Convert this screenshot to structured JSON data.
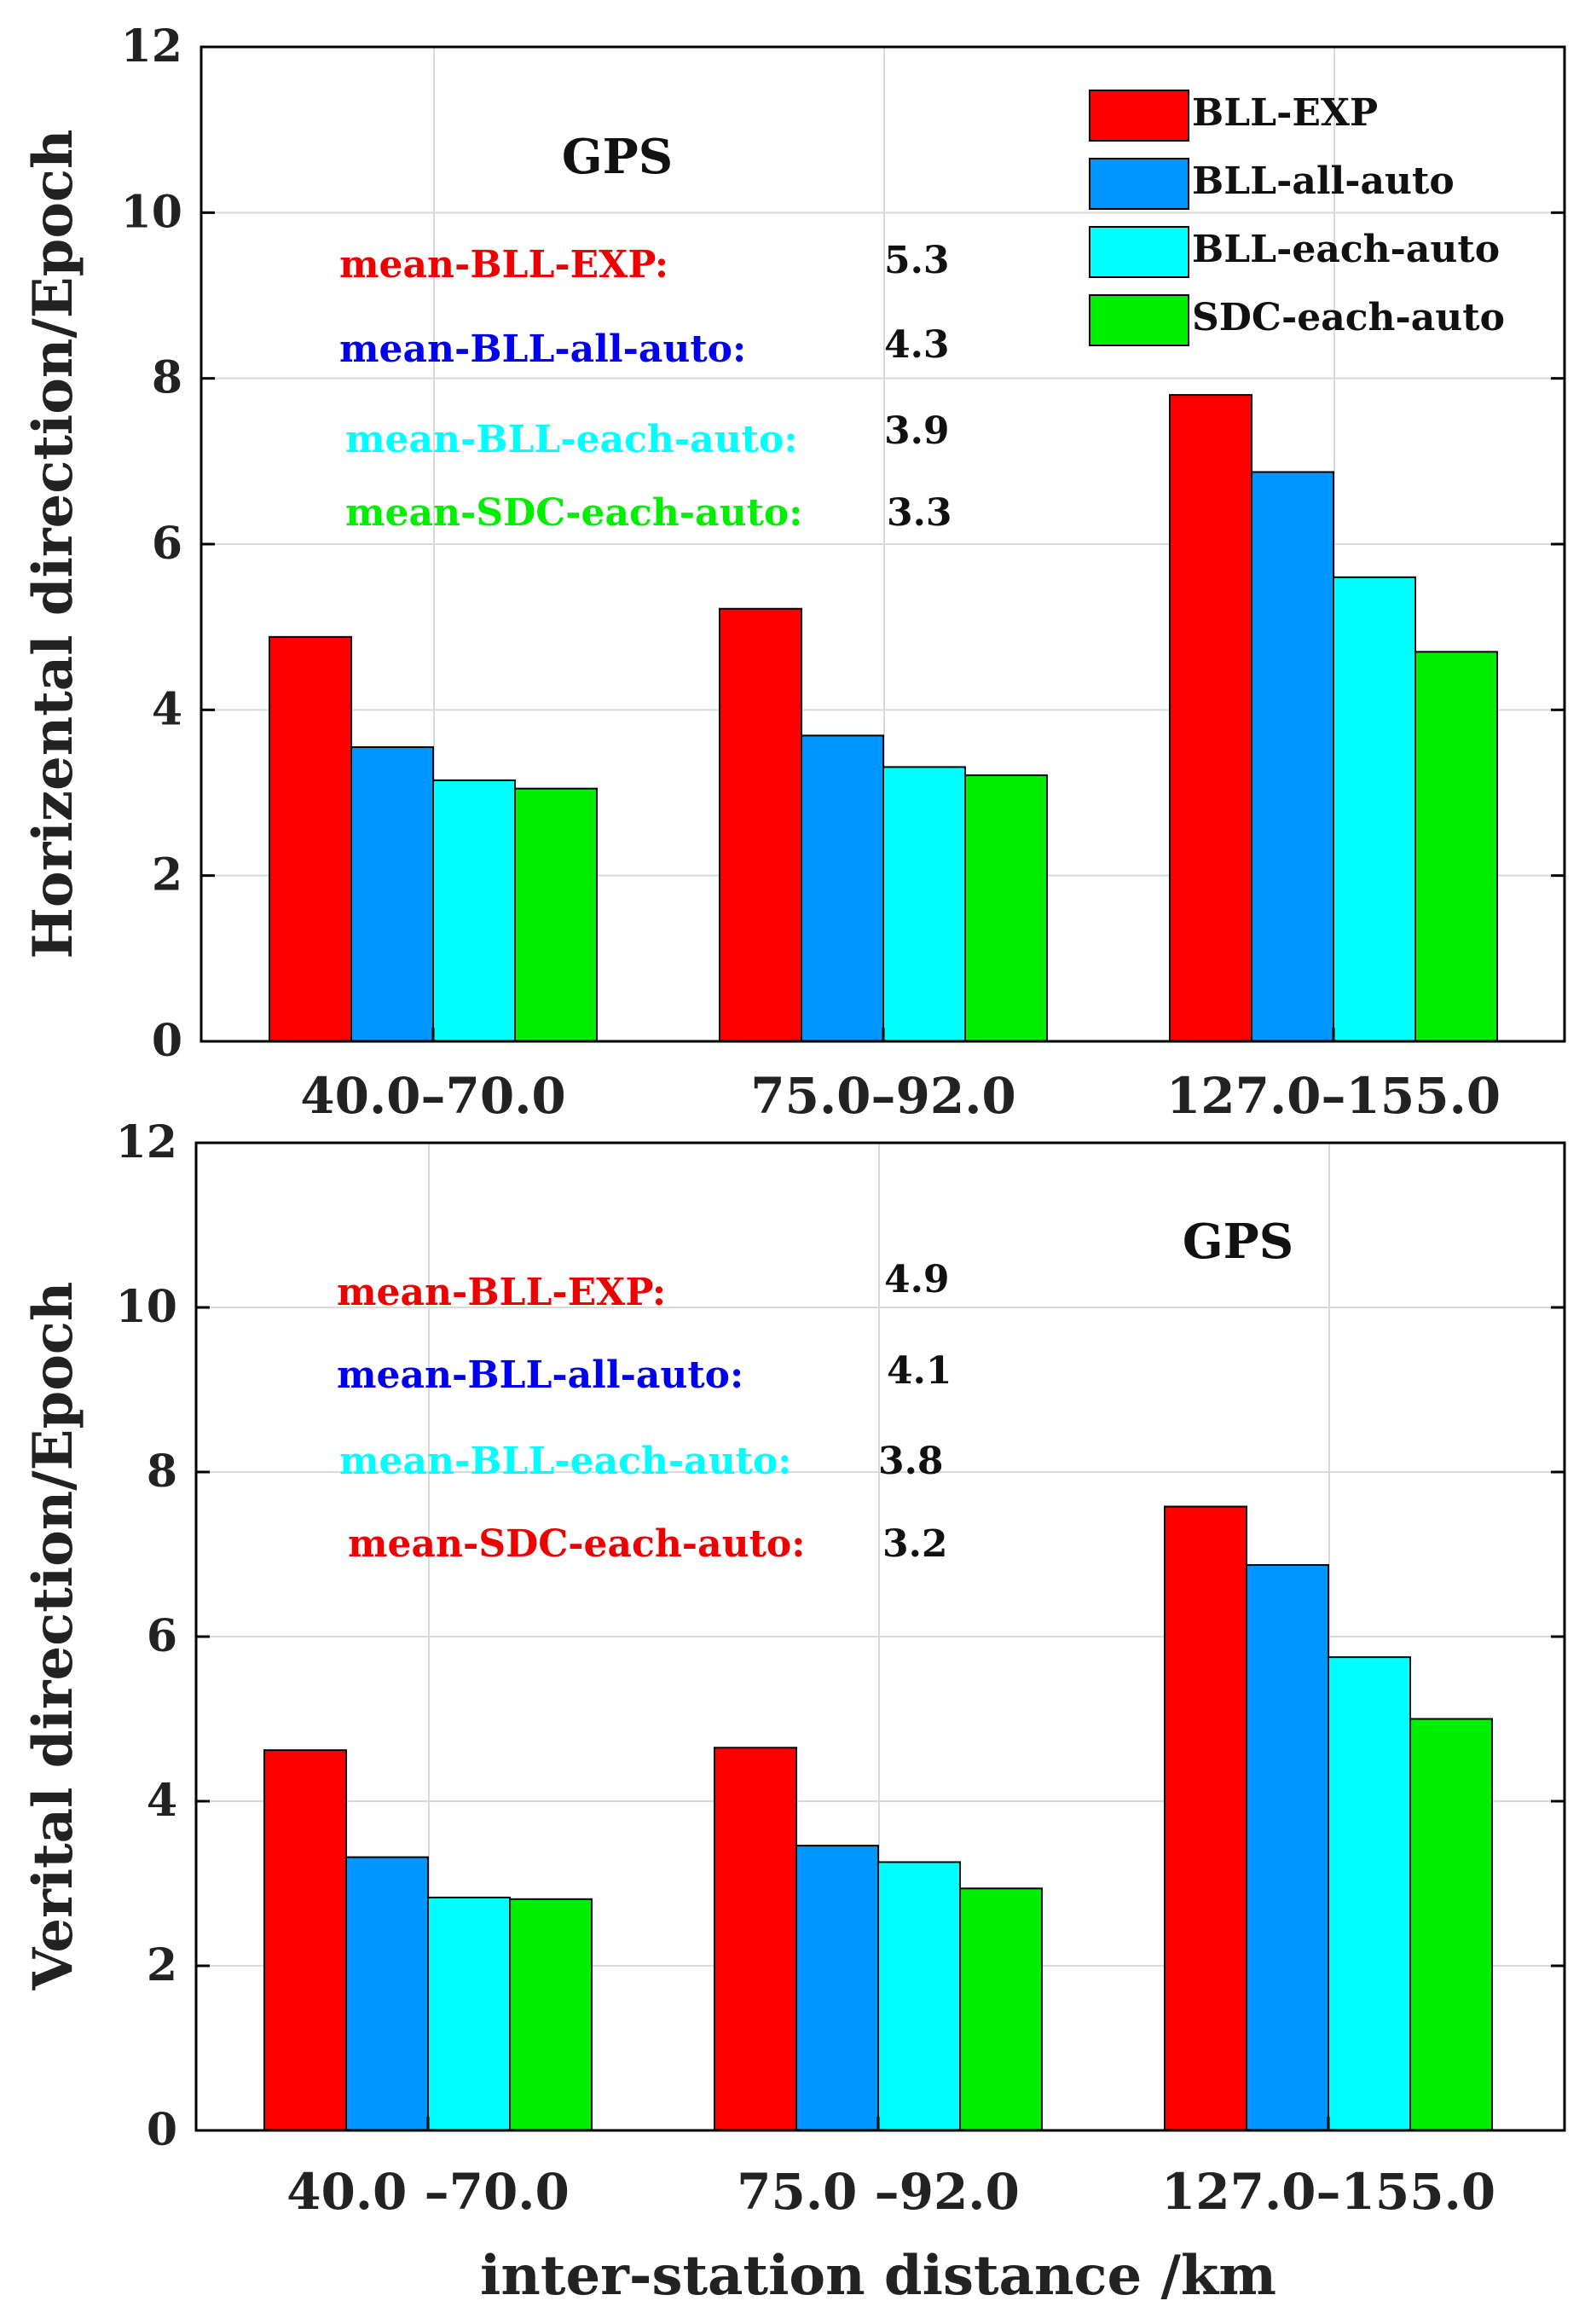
{
  "chart_data": [
    {
      "type": "bar",
      "title": "GPS",
      "xlabel": "",
      "ylabel": "Horizental direction/Epoch",
      "ylim": [
        0,
        12
      ],
      "yticks": [
        "0",
        "2",
        "4",
        "6",
        "8",
        "10",
        "12"
      ],
      "grid": true,
      "legend_position": "top-right",
      "categories": [
        "40.0–70.0",
        "75.0–92.0",
        "127.0–155.0"
      ],
      "series": [
        {
          "name": "BLL-EXP",
          "color": "#ff0000",
          "values": [
            4.88,
            5.22,
            7.8
          ]
        },
        {
          "name": "BLL-all-auto",
          "color": "#0096ff",
          "values": [
            3.55,
            3.69,
            6.87
          ]
        },
        {
          "name": "BLL-each-auto",
          "color": "#00ffff",
          "values": [
            3.15,
            3.31,
            5.6
          ]
        },
        {
          "name": "SDC-each-auto",
          "color": "#00ee00",
          "values": [
            3.05,
            3.21,
            4.7
          ]
        }
      ],
      "annotations": [
        {
          "label": "mean-BLL-EXP:",
          "value": "5.3",
          "color": "#ee0000"
        },
        {
          "label": "mean-BLL-all-auto:",
          "value": "4.3",
          "color": "#0000ee"
        },
        {
          "label": "mean-BLL-each-auto:",
          "value": "3.9",
          "color": "#00ffff"
        },
        {
          "label": "mean-SDC-each-auto:",
          "value": "3.3",
          "color": "#00ee00"
        }
      ]
    },
    {
      "type": "bar",
      "title": "GPS",
      "xlabel": "inter-station distance /km",
      "ylabel": "Verital direction/Epoch",
      "ylim": [
        0,
        12
      ],
      "yticks": [
        "0",
        "2",
        "4",
        "6",
        "8",
        "10",
        "12"
      ],
      "grid": true,
      "categories": [
        "40.0 –70.0",
        "75.0 –92.0",
        "127.0–155.0"
      ],
      "series": [
        {
          "name": "BLL-EXP",
          "color": "#ff0000",
          "values": [
            4.62,
            4.65,
            7.58
          ]
        },
        {
          "name": "BLL-all-auto",
          "color": "#0096ff",
          "values": [
            3.32,
            3.46,
            6.87
          ]
        },
        {
          "name": "BLL-each-auto",
          "color": "#00ffff",
          "values": [
            2.83,
            3.26,
            5.75
          ]
        },
        {
          "name": "SDC-each-auto",
          "color": "#00ee00",
          "values": [
            2.81,
            2.94,
            5.0
          ]
        }
      ],
      "annotations": [
        {
          "label": "mean-BLL-EXP:",
          "value": "4.9",
          "color": "#ee0000"
        },
        {
          "label": "mean-BLL-all-auto:",
          "value": "4.1",
          "color": "#0000ee"
        },
        {
          "label": "mean-BLL-each-auto:",
          "value": "3.8",
          "color": "#00ffff"
        },
        {
          "label": "mean-SDC-each-auto:",
          "value": "3.2",
          "color": "#ee0000"
        }
      ]
    }
  ]
}
